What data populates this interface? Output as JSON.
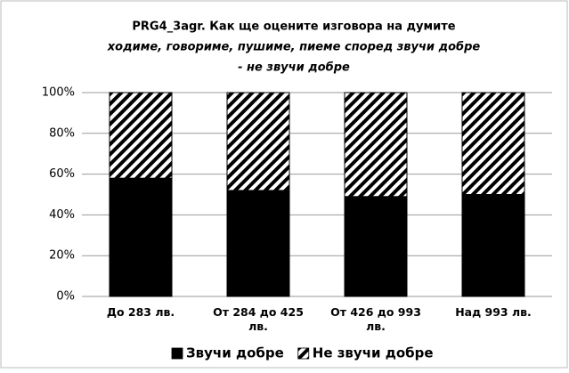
{
  "chart_data": {
    "type": "stacked_bar",
    "title": [
      "PRG4_3agr. Как ще оцените изговора на думите",
      "ходиме, говориме, пушиме, пиеме според звучи добре",
      "- не звучи добре"
    ],
    "categories": [
      "До 283 лв.",
      "От 284 до 425 лв.",
      "От 426 до 993 лв.",
      "Над 993 лв."
    ],
    "series": [
      {
        "name": "Звучи добре",
        "color": "#000000",
        "values": [
          58,
          52,
          49,
          50
        ]
      },
      {
        "name": "Не звучи добре",
        "color": "hatch",
        "values": [
          42,
          48,
          51,
          50
        ]
      }
    ],
    "ylim": [
      0,
      100
    ],
    "yticks": [
      {
        "value": 0,
        "label": "0%"
      },
      {
        "value": 20,
        "label": "20%"
      },
      {
        "value": 40,
        "label": "40%"
      },
      {
        "value": 60,
        "label": "60%"
      },
      {
        "value": 80,
        "label": "80%"
      },
      {
        "value": 100,
        "label": "100%"
      }
    ],
    "grid": true,
    "legend": "bottom"
  }
}
